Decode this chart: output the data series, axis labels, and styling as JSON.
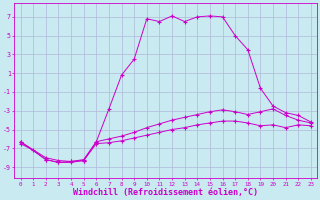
{
  "background_color": "#c8eaf0",
  "grid_color": "#b0b8d8",
  "line_color": "#cc00cc",
  "xlabel": "Windchill (Refroidissement éolien,°C)",
  "xlabel_fontsize": 6,
  "ytick_labels": [
    "-9",
    "-7",
    "-5",
    "-3",
    "-1",
    "1",
    "3",
    "5",
    "7"
  ],
  "ytick_values": [
    -9,
    -7,
    -5,
    -3,
    -1,
    1,
    3,
    5,
    7
  ],
  "xlim": [
    -0.5,
    23.5
  ],
  "ylim": [
    -10.2,
    8.5
  ],
  "figsize": [
    3.2,
    2.0
  ],
  "dpi": 100,
  "series1_x": [
    0,
    1,
    2,
    3,
    4,
    5,
    6,
    7,
    8,
    9,
    10,
    11,
    12,
    13,
    14,
    15,
    16,
    17,
    18,
    19,
    20,
    21,
    22,
    23
  ],
  "series1_y": [
    -6.5,
    -7.2,
    -8.2,
    -8.5,
    -8.4,
    -8.2,
    -6.3,
    -2.8,
    0.8,
    2.5,
    6.8,
    6.5,
    7.1,
    6.5,
    7.0,
    7.1,
    7.0,
    5.0,
    3.5,
    -0.6,
    -2.5,
    -3.2,
    -3.5,
    -4.2
  ],
  "series2_x": [
    0,
    2,
    3,
    4,
    5,
    6,
    7,
    8,
    9,
    10,
    11,
    12,
    13,
    14,
    15,
    16,
    17,
    18,
    19,
    20,
    21,
    22,
    23
  ],
  "series2_y": [
    -6.3,
    -8.0,
    -8.3,
    -8.4,
    -8.3,
    -6.3,
    -6.0,
    -5.7,
    -5.3,
    -4.8,
    -4.4,
    -4.0,
    -3.7,
    -3.4,
    -3.1,
    -2.9,
    -3.1,
    -3.4,
    -3.1,
    -2.8,
    -3.5,
    -4.0,
    -4.3
  ],
  "series3_x": [
    0,
    2,
    3,
    4,
    5,
    6,
    7,
    8,
    9,
    10,
    11,
    12,
    13,
    14,
    15,
    16,
    17,
    18,
    19,
    20,
    21,
    22,
    23
  ],
  "series3_y": [
    -6.3,
    -8.2,
    -8.5,
    -8.5,
    -8.3,
    -6.5,
    -6.4,
    -6.2,
    -5.9,
    -5.6,
    -5.3,
    -5.0,
    -4.8,
    -4.5,
    -4.3,
    -4.1,
    -4.1,
    -4.3,
    -4.6,
    -4.5,
    -4.8,
    -4.5,
    -4.6
  ],
  "series4_x": [
    0,
    5,
    23
  ],
  "series4_y": [
    -6.5,
    -8.3,
    -4.5
  ]
}
